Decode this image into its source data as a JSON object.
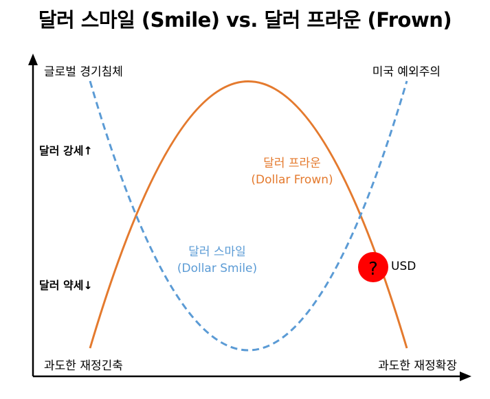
{
  "title": "달러 스마일 (Smile) vs. 달러 프라운 (Frown)",
  "labels": {
    "top_left": "글로벌 경기침체",
    "top_right": "미국 예외주의",
    "bottom_left": "과도한 재정긴축",
    "bottom_right": "과도한 재정확장",
    "dollar_strong": "달러 강세↑",
    "dollar_weak": "달러 약세↓"
  },
  "frown": {
    "name": "달러 프라운",
    "english": "(Dollar Frown)",
    "color": "#E47A2E"
  },
  "smile": {
    "name": "달러 스마일",
    "english": "(Dollar Smile)",
    "color": "#5B9BD5"
  },
  "marker": {
    "symbol": "?",
    "label": "USD",
    "color": "#FF0000"
  }
}
